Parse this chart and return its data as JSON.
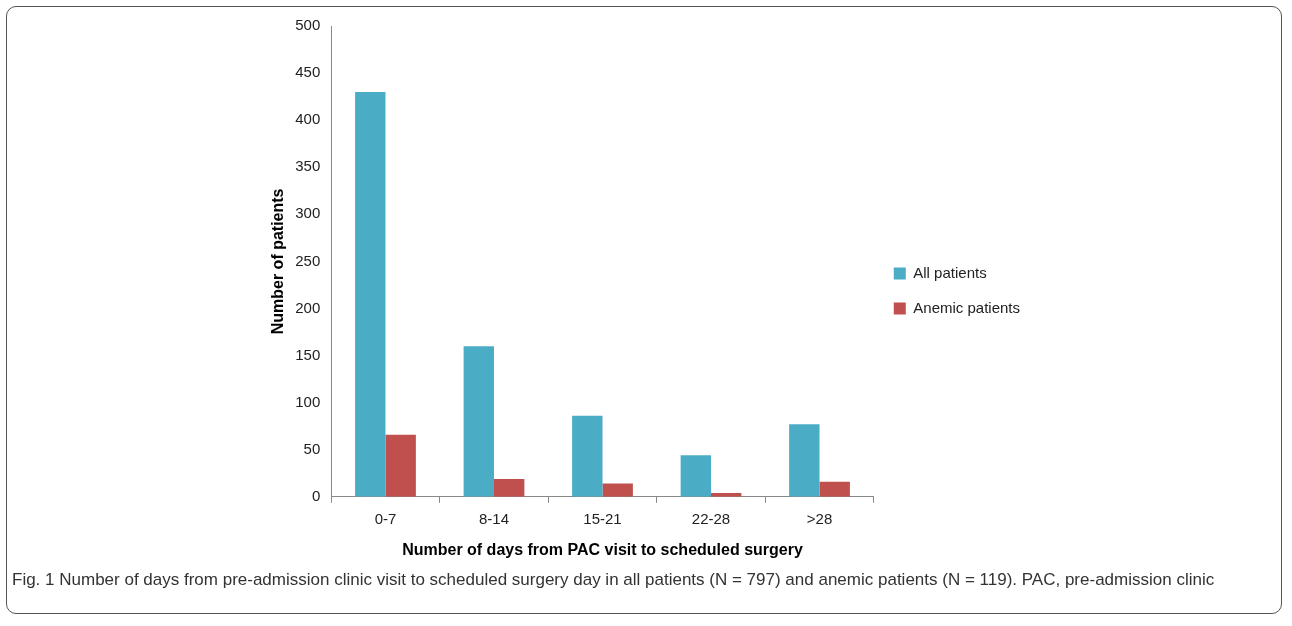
{
  "chart_data": {
    "type": "bar",
    "xlabel": "Number of days from PAC visit to scheduled surgery",
    "ylabel": "Number of patients",
    "categories": [
      "0-7",
      "8-14",
      "15-21",
      "22-28",
      ">28"
    ],
    "series": [
      {
        "name": "All patients",
        "color": "#4bacc6",
        "values": [
          430,
          160,
          86,
          44,
          77
        ]
      },
      {
        "name": "Anemic patients",
        "color": "#c0504d",
        "values": [
          66,
          19,
          14,
          4,
          16
        ]
      }
    ],
    "ylim": [
      0,
      500
    ],
    "yticks": [
      0,
      50,
      100,
      150,
      200,
      250,
      300,
      350,
      400,
      450,
      500
    ],
    "legend": "right",
    "annotations": [
      "Fig. 1 Number of days from pre-admission clinic visit to scheduled surgery day in all patients (N = 797) and anemic patients (N = 119). PAC, pre-admission clinic"
    ]
  }
}
